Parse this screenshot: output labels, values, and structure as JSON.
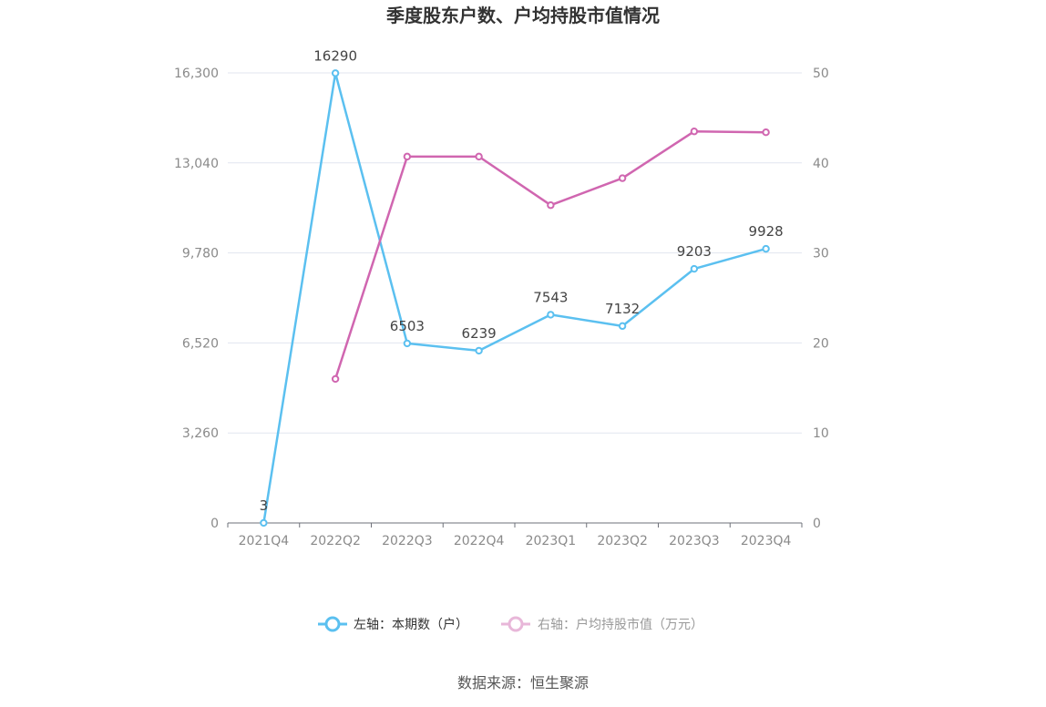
{
  "chart_data": {
    "type": "line",
    "title": "季度股东户数、户均持股市值情况",
    "categories": [
      "2021Q4",
      "2022Q2",
      "2022Q3",
      "2022Q4",
      "2023Q1",
      "2023Q2",
      "2023Q3",
      "2023Q4"
    ],
    "left_axis": {
      "ylim": [
        0,
        16300
      ],
      "ticks": [
        "0",
        "3,260",
        "6,520",
        "9,780",
        "13,040",
        "16,300"
      ]
    },
    "right_axis": {
      "ylim": [
        0,
        50
      ],
      "ticks": [
        "0",
        "10",
        "20",
        "30",
        "40",
        "50"
      ]
    },
    "grid": true,
    "legend_position": "bottom",
    "series": [
      {
        "name": "左轴：本期数（户）",
        "axis": "left",
        "color": "#5bc0f0",
        "values": [
          3,
          16290,
          6503,
          6239,
          7543,
          7132,
          9203,
          9928
        ],
        "labels": [
          "3",
          "16290",
          "6503",
          "6239",
          "7543",
          "7132",
          "9203",
          "9928"
        ]
      },
      {
        "name": "右轴：户均持股市值（万元）",
        "axis": "right",
        "color": "#d066b0",
        "values": [
          null,
          16.0,
          40.7,
          40.7,
          35.3,
          38.3,
          43.5,
          43.4
        ]
      }
    ],
    "source": "数据来源：恒生聚源"
  }
}
